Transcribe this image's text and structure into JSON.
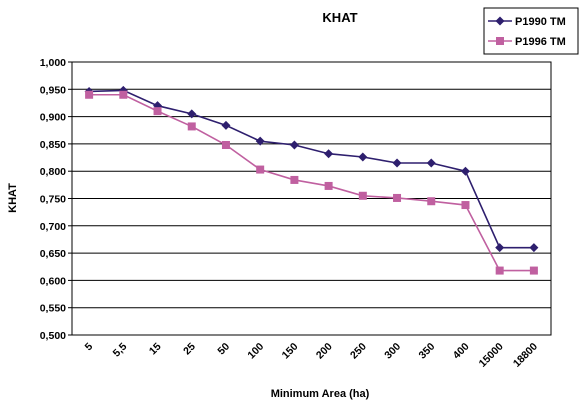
{
  "chart_data": {
    "type": "line",
    "title": "KHAT",
    "xlabel": "Minimum Area (ha)",
    "ylabel": "KHAT",
    "categories": [
      "5",
      "5,5",
      "15",
      "25",
      "50",
      "100",
      "150",
      "200",
      "250",
      "300",
      "350",
      "400",
      "15000",
      "18800"
    ],
    "ylim": [
      0.5,
      1.0
    ],
    "yticks": [
      "0,500",
      "0,550",
      "0,600",
      "0,650",
      "0,700",
      "0,750",
      "0,800",
      "0,850",
      "0,900",
      "0,950",
      "1,000"
    ],
    "grid": true,
    "legend": "top-right",
    "series": [
      {
        "name": "P1990 TM",
        "color": "#2e1f6e",
        "marker": "diamond",
        "values": [
          0.946,
          0.948,
          0.92,
          0.905,
          0.884,
          0.855,
          0.848,
          0.832,
          0.826,
          0.815,
          0.815,
          0.8,
          0.66,
          0.66
        ]
      },
      {
        "name": "P1996 TM",
        "color": "#c060a0",
        "marker": "square",
        "values": [
          0.94,
          0.94,
          0.91,
          0.882,
          0.848,
          0.803,
          0.784,
          0.773,
          0.755,
          0.751,
          0.745,
          0.738,
          0.618,
          0.618
        ]
      }
    ]
  }
}
